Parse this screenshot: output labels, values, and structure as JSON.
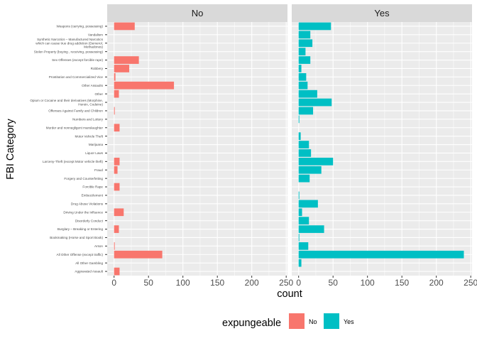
{
  "chart_data": {
    "type": "bar",
    "orientation": "horizontal",
    "facet": "expungeable",
    "ylabel": "FBI Category",
    "xlabel": "count",
    "xlim": [
      0,
      250
    ],
    "xticks": [
      "0",
      "50",
      "100",
      "150",
      "200",
      "250"
    ],
    "grid": true,
    "legend_position": "bottom",
    "categories": [
      "Weapons (carrying, possessing)",
      "Vandalism",
      "Synthetic Narcotics – Manufactured Narcotics which can cause true drug addiction (Demerol, Methadones)",
      "Stolen Property (buying , receiving, possessing)",
      "Sex Offenses (except forcible rape)",
      "Robbery",
      "Prostitution and Commercialized Vice",
      "Other Assaults",
      "Other",
      "Opium or Cocaine and their derivatives (Morphine, Heroin, Codeine)",
      "Offenses Against Family and Children",
      "Numbers and Lottery",
      "Murder and nonnegligent manslaughter",
      "Motor Vehicle Theft",
      "Marijuana",
      "Liquor Laws",
      "Larceny-Theft (except Motor vehicle theft)",
      "Fraud",
      "Forgery and Counterfeiting",
      "Forcible Rape",
      "Embezzlement",
      "Drug Abuse Violations",
      "Driving Under the Influence",
      "Disorderly Conduct",
      "Burglary – Breaking or Entering",
      "Bookmaking (Horse and Sport Book)",
      "Arson",
      "All Other Offense (except traffic)",
      "All Other Gambling",
      "Aggravated Assault"
    ],
    "category_label_lines": [
      [
        "Weapons (carrying, possessing)"
      ],
      [
        "Vandalism"
      ],
      [
        "Synthetic Narcotics – Manufactured Narcotics",
        "which can cause true drug addiction (Demerol,",
        "Methadones)"
      ],
      [
        "Stolen Property (buying , receiving, possessing)"
      ],
      [
        "Sex Offenses (except forcible rape)"
      ],
      [
        "Robbery"
      ],
      [
        "Prostitution and Commercialized Vice"
      ],
      [
        "Other Assaults"
      ],
      [
        "Other"
      ],
      [
        "Opium or Cocaine and their derivatives (Morphine,",
        "Heroin, Codeine)"
      ],
      [
        "Offenses Against Family and Children"
      ],
      [
        "Numbers and Lottery"
      ],
      [
        "Murder and nonnegligent manslaughter"
      ],
      [
        "Motor Vehicle Theft"
      ],
      [
        "Marijuana"
      ],
      [
        "Liquor Laws"
      ],
      [
        "Larceny-Theft (except Motor vehicle theft)"
      ],
      [
        "Fraud"
      ],
      [
        "Forgery and Counterfeiting"
      ],
      [
        "Forcible Rape"
      ],
      [
        "Embezzlement"
      ],
      [
        "Drug Abuse Violations"
      ],
      [
        "Driving Under the Influence"
      ],
      [
        "Disorderly Conduct"
      ],
      [
        "Burglary – Breaking or Entering"
      ],
      [
        "Bookmaking (Horse and Sport Book)"
      ],
      [
        "Arson"
      ],
      [
        "All Other Offense (except traffic)"
      ],
      [
        "All Other Gambling"
      ],
      [
        "Aggravated Assault"
      ]
    ],
    "series": [
      {
        "name": "No",
        "color": "#F8766D",
        "values": [
          30,
          0,
          0,
          0,
          36,
          22,
          2,
          87,
          7,
          0,
          1,
          0,
          8,
          0,
          0,
          0,
          8,
          5,
          0,
          8,
          0,
          0,
          14,
          0,
          7,
          0,
          1,
          70,
          0,
          8
        ]
      },
      {
        "name": "Yes",
        "color": "#00BFC4",
        "values": [
          47,
          17,
          20,
          10,
          17,
          4,
          11,
          13,
          27,
          48,
          21,
          1,
          0,
          3,
          15,
          18,
          50,
          33,
          16,
          0,
          1,
          28,
          5,
          15,
          37,
          1,
          14,
          240,
          4,
          0
        ]
      }
    ],
    "legend": {
      "title": "expungeable",
      "entries": [
        {
          "label": "No",
          "color": "#F8766D"
        },
        {
          "label": "Yes",
          "color": "#00BFC4"
        }
      ]
    }
  }
}
